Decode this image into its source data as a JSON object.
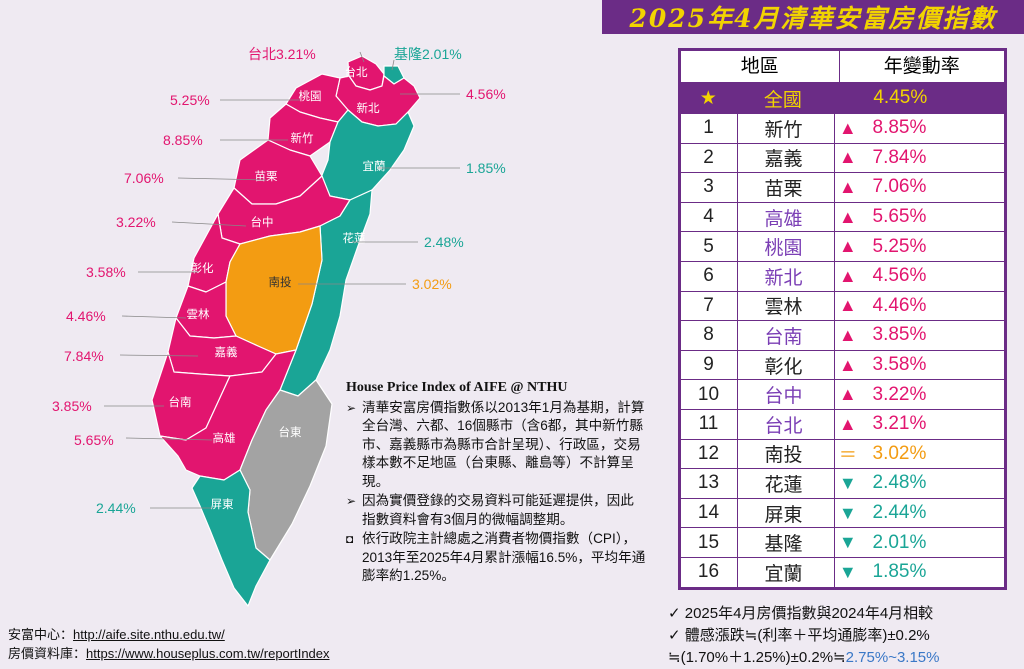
{
  "title": "2025年4月清華安富房價指數",
  "table": {
    "col_region": "地區",
    "col_rate": "年變動率",
    "national": {
      "star": "★",
      "name": "全國",
      "rate": "4.45%"
    },
    "rows": [
      {
        "rank": "1",
        "name": "新竹",
        "arrow": "▲",
        "rate": "8.85%",
        "trend": "up",
        "city": false
      },
      {
        "rank": "2",
        "name": "嘉義",
        "arrow": "▲",
        "rate": "7.84%",
        "trend": "up",
        "city": false
      },
      {
        "rank": "3",
        "name": "苗栗",
        "arrow": "▲",
        "rate": "7.06%",
        "trend": "up",
        "city": false
      },
      {
        "rank": "4",
        "name": "高雄",
        "arrow": "▲",
        "rate": "5.65%",
        "trend": "up",
        "city": true
      },
      {
        "rank": "5",
        "name": "桃園",
        "arrow": "▲",
        "rate": "5.25%",
        "trend": "up",
        "city": true
      },
      {
        "rank": "6",
        "name": "新北",
        "arrow": "▲",
        "rate": "4.56%",
        "trend": "up",
        "city": true
      },
      {
        "rank": "7",
        "name": "雲林",
        "arrow": "▲",
        "rate": "4.46%",
        "trend": "up",
        "city": false
      },
      {
        "rank": "8",
        "name": "台南",
        "arrow": "▲",
        "rate": "3.85%",
        "trend": "up",
        "city": true
      },
      {
        "rank": "9",
        "name": "彰化",
        "arrow": "▲",
        "rate": "3.58%",
        "trend": "up",
        "city": false
      },
      {
        "rank": "10",
        "name": "台中",
        "arrow": "▲",
        "rate": "3.22%",
        "trend": "up",
        "city": true
      },
      {
        "rank": "11",
        "name": "台北",
        "arrow": "▲",
        "rate": "3.21%",
        "trend": "up",
        "city": true
      },
      {
        "rank": "12",
        "name": "南投",
        "arrow": "＝",
        "rate": "3.02%",
        "trend": "flat",
        "city": false
      },
      {
        "rank": "13",
        "name": "花蓮",
        "arrow": "▼",
        "rate": "2.48%",
        "trend": "down",
        "city": false
      },
      {
        "rank": "14",
        "name": "屏東",
        "arrow": "▼",
        "rate": "2.44%",
        "trend": "down",
        "city": false
      },
      {
        "rank": "15",
        "name": "基隆",
        "arrow": "▼",
        "rate": "2.01%",
        "trend": "down",
        "city": false
      },
      {
        "rank": "16",
        "name": "宜蘭",
        "arrow": "▼",
        "rate": "1.85%",
        "trend": "down",
        "city": false
      }
    ]
  },
  "map": {
    "regions": [
      {
        "name": "台北",
        "label": "台北3.21%",
        "trend": "up"
      },
      {
        "name": "基隆",
        "label": "基隆2.01%",
        "trend": "down"
      },
      {
        "name": "新北",
        "label": "4.56%",
        "trend": "up"
      },
      {
        "name": "桃園",
        "label": "5.25%",
        "trend": "up"
      },
      {
        "name": "新竹",
        "label": "8.85%",
        "trend": "up"
      },
      {
        "name": "宜蘭",
        "label": "1.85%",
        "trend": "down"
      },
      {
        "name": "苗栗",
        "label": "7.06%",
        "trend": "up"
      },
      {
        "name": "台中",
        "label": "3.22%",
        "trend": "up"
      },
      {
        "name": "花蓮",
        "label": "2.48%",
        "trend": "down"
      },
      {
        "name": "彰化",
        "label": "3.58%",
        "trend": "up"
      },
      {
        "name": "南投",
        "label": "3.02%",
        "trend": "flat"
      },
      {
        "name": "雲林",
        "label": "4.46%",
        "trend": "up"
      },
      {
        "name": "嘉義",
        "label": "7.84%",
        "trend": "up"
      },
      {
        "name": "台南",
        "label": "3.85%",
        "trend": "up"
      },
      {
        "name": "高雄",
        "label": "5.65%",
        "trend": "up"
      },
      {
        "name": "台東",
        "label": "",
        "trend": "na"
      },
      {
        "name": "屏東",
        "label": "2.44%",
        "trend": "down"
      }
    ]
  },
  "notes": {
    "heading": "House Price Index of AIFE @ NTHU",
    "bullet_arrow": "➢",
    "bullet_box": "◘",
    "items": [
      "清華安富房價指數係以2013年1月為基期，計算全台灣、六都、16個縣市（含6都，其中新竹縣市、嘉義縣市為縣市合計呈現）、行政區，交易樣本數不足地區（台東縣、離島等）不計算呈現。",
      "因為實價登錄的交易資料可能延遲提供，因此指數資料會有3個月的微幅調整期。",
      "依行政院主計總處之消費者物價指數（CPI），2013年至2025年4月累計漲幅16.5%，平均年通膨率約1.25%。"
    ]
  },
  "footer": {
    "src1_label": "安富中心：",
    "src1_url": "http://aife.site.nthu.edu.tw/",
    "src2_label": "房價資料庫：",
    "src2_url": "https://www.houseplus.com.tw/reportIndex"
  },
  "remarks": {
    "check": "✓",
    "line1": "2025年4月房價指數與2024年4月相較",
    "line2": "體感漲跌≒(利率＋平均通膨率)±0.2%",
    "line3a": "≒(1.70%＋1.25%)±0.2%≒",
    "line3b": "2.75%~3.15%"
  },
  "colors": {
    "purple": "#6b2c86",
    "up": "#e2156f",
    "down": "#1aa596",
    "flat": "#f39c12",
    "na": "#a3a3a3",
    "gold": "#f2d400",
    "city_name": "#7b3fb5"
  }
}
